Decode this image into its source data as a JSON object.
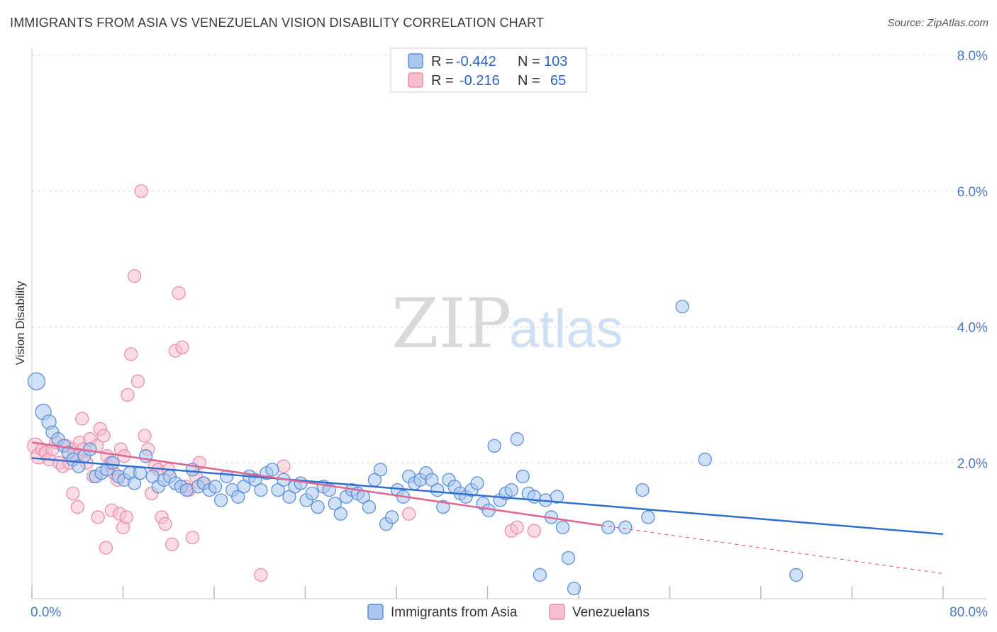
{
  "title": "IMMIGRANTS FROM ASIA VS VENEZUELAN VISION DISABILITY CORRELATION CHART",
  "source": "Source: ZipAtlas.com",
  "watermark": {
    "zip": "ZIP",
    "atlas": "atlas"
  },
  "colors": {
    "blue_fill": "#a9c6ee",
    "blue_stroke": "#5b8fd6",
    "blue_line": "#2f6fd0",
    "pink_fill": "#f6bfd0",
    "pink_stroke": "#ea8eab",
    "pink_line": "#e0668f",
    "tick_text": "#4a78c8",
    "grid": "#dddddd"
  },
  "legend": {
    "rows": [
      {
        "r_label": "R =",
        "r_value": "-0.442",
        "n_label": "N =",
        "n_value": "103",
        "color": "blue"
      },
      {
        "r_label": "R =",
        "r_value": "-0.216",
        "n_label": "N =",
        "n_value": "65",
        "color": "pink"
      }
    ]
  },
  "bottom_legend": [
    {
      "label": "Immigrants from Asia",
      "color": "blue"
    },
    {
      "label": "Venezuelans",
      "color": "pink"
    }
  ],
  "chart_data": {
    "type": "scatter",
    "ylabel": "Vision Disability",
    "xlim": [
      0,
      80
    ],
    "ylim": [
      0,
      8
    ],
    "x_tick_labels": [
      {
        "value": 0,
        "label": "0.0%"
      },
      {
        "value": 80,
        "label": "80.0%"
      }
    ],
    "y_tick_labels": [
      {
        "value": 2,
        "label": "2.0%"
      },
      {
        "value": 4,
        "label": "4.0%"
      },
      {
        "value": 6,
        "label": "6.0%"
      },
      {
        "value": 8,
        "label": "8.0%"
      }
    ],
    "grid": true,
    "legend_position": "top-center",
    "series": [
      {
        "name": "Immigrants from Asia",
        "color": "blue",
        "trend": {
          "x0": 0,
          "y0": 2.07,
          "x1": 80,
          "y1": 0.95
        },
        "points": [
          [
            0.4,
            3.2
          ],
          [
            1.0,
            2.75
          ],
          [
            1.5,
            2.6
          ],
          [
            1.8,
            2.45
          ],
          [
            2.3,
            2.35
          ],
          [
            2.8,
            2.25
          ],
          [
            3.2,
            2.15
          ],
          [
            3.6,
            2.05
          ],
          [
            4.1,
            1.95
          ],
          [
            4.6,
            2.1
          ],
          [
            5.1,
            2.2
          ],
          [
            5.6,
            1.8
          ],
          [
            6.1,
            1.85
          ],
          [
            6.6,
            1.9
          ],
          [
            7.1,
            2.0
          ],
          [
            7.6,
            1.8
          ],
          [
            8.1,
            1.75
          ],
          [
            8.6,
            1.85
          ],
          [
            9.0,
            1.7
          ],
          [
            9.5,
            1.85
          ],
          [
            10.0,
            2.1
          ],
          [
            10.6,
            1.8
          ],
          [
            11.1,
            1.65
          ],
          [
            11.6,
            1.75
          ],
          [
            12.1,
            1.8
          ],
          [
            12.6,
            1.7
          ],
          [
            13.1,
            1.65
          ],
          [
            13.6,
            1.6
          ],
          [
            14.1,
            1.9
          ],
          [
            14.6,
            1.65
          ],
          [
            15.1,
            1.7
          ],
          [
            15.6,
            1.6
          ],
          [
            16.1,
            1.65
          ],
          [
            16.6,
            1.45
          ],
          [
            17.1,
            1.8
          ],
          [
            17.6,
            1.6
          ],
          [
            18.1,
            1.5
          ],
          [
            18.6,
            1.65
          ],
          [
            19.1,
            1.8
          ],
          [
            19.6,
            1.75
          ],
          [
            20.1,
            1.6
          ],
          [
            20.6,
            1.85
          ],
          [
            21.1,
            1.9
          ],
          [
            21.6,
            1.6
          ],
          [
            22.1,
            1.75
          ],
          [
            22.6,
            1.5
          ],
          [
            23.1,
            1.65
          ],
          [
            23.6,
            1.7
          ],
          [
            24.1,
            1.45
          ],
          [
            24.6,
            1.55
          ],
          [
            25.1,
            1.35
          ],
          [
            25.6,
            1.65
          ],
          [
            26.1,
            1.6
          ],
          [
            26.6,
            1.4
          ],
          [
            27.1,
            1.25
          ],
          [
            27.6,
            1.5
          ],
          [
            28.1,
            1.6
          ],
          [
            28.6,
            1.55
          ],
          [
            29.1,
            1.5
          ],
          [
            29.6,
            1.35
          ],
          [
            30.1,
            1.75
          ],
          [
            30.6,
            1.9
          ],
          [
            31.1,
            1.1
          ],
          [
            31.6,
            1.2
          ],
          [
            32.1,
            1.6
          ],
          [
            32.6,
            1.5
          ],
          [
            33.1,
            1.8
          ],
          [
            33.6,
            1.7
          ],
          [
            34.1,
            1.75
          ],
          [
            34.6,
            1.85
          ],
          [
            35.1,
            1.75
          ],
          [
            35.6,
            1.6
          ],
          [
            36.1,
            1.35
          ],
          [
            36.6,
            1.75
          ],
          [
            37.1,
            1.65
          ],
          [
            37.6,
            1.55
          ],
          [
            38.1,
            1.5
          ],
          [
            38.6,
            1.6
          ],
          [
            39.1,
            1.7
          ],
          [
            39.6,
            1.4
          ],
          [
            40.1,
            1.3
          ],
          [
            40.6,
            2.25
          ],
          [
            41.1,
            1.45
          ],
          [
            41.6,
            1.55
          ],
          [
            42.1,
            1.6
          ],
          [
            42.6,
            2.35
          ],
          [
            43.1,
            1.8
          ],
          [
            43.6,
            1.55
          ],
          [
            44.1,
            1.5
          ],
          [
            44.6,
            0.35
          ],
          [
            45.1,
            1.45
          ],
          [
            45.6,
            1.2
          ],
          [
            46.1,
            1.5
          ],
          [
            46.6,
            1.05
          ],
          [
            47.1,
            0.6
          ],
          [
            47.6,
            0.15
          ],
          [
            50.6,
            1.05
          ],
          [
            52.1,
            1.05
          ],
          [
            53.6,
            1.6
          ],
          [
            54.1,
            1.2
          ],
          [
            57.1,
            4.3
          ],
          [
            59.1,
            2.05
          ],
          [
            67.1,
            0.35
          ]
        ]
      },
      {
        "name": "Venezuelans",
        "color": "pink",
        "trend": {
          "x0": 0,
          "y0": 2.3,
          "x1": 50,
          "y1": 1.08
        },
        "trend_ext": {
          "x0": 50,
          "y0": 1.08,
          "x1": 80,
          "y1": 0.37
        },
        "points": [
          [
            0.3,
            2.25
          ],
          [
            0.6,
            2.1
          ],
          [
            0.9,
            2.2
          ],
          [
            1.2,
            2.15
          ],
          [
            1.5,
            2.05
          ],
          [
            1.8,
            2.2
          ],
          [
            2.1,
            2.3
          ],
          [
            2.4,
            2.0
          ],
          [
            2.7,
            1.95
          ],
          [
            3.0,
            2.25
          ],
          [
            3.3,
            2.0
          ],
          [
            3.6,
            2.2
          ],
          [
            3.9,
            2.1
          ],
          [
            4.2,
            2.3
          ],
          [
            4.5,
            2.2
          ],
          [
            4.8,
            2.0
          ],
          [
            5.1,
            2.35
          ],
          [
            5.4,
            1.8
          ],
          [
            5.7,
            2.25
          ],
          [
            6.0,
            2.5
          ],
          [
            6.3,
            2.4
          ],
          [
            6.6,
            2.1
          ],
          [
            6.9,
            2.0
          ],
          [
            7.2,
            1.85
          ],
          [
            7.5,
            1.75
          ],
          [
            7.8,
            2.2
          ],
          [
            8.1,
            2.1
          ],
          [
            8.4,
            3.0
          ],
          [
            8.7,
            3.6
          ],
          [
            9.0,
            4.75
          ],
          [
            9.3,
            3.2
          ],
          [
            9.6,
            6.0
          ],
          [
            9.9,
            2.4
          ],
          [
            10.2,
            2.2
          ],
          [
            10.5,
            1.55
          ],
          [
            10.8,
            1.95
          ],
          [
            11.1,
            1.9
          ],
          [
            11.4,
            1.2
          ],
          [
            11.7,
            1.1
          ],
          [
            12.0,
            1.9
          ],
          [
            12.3,
            0.8
          ],
          [
            12.6,
            3.65
          ],
          [
            12.9,
            4.5
          ],
          [
            13.2,
            3.7
          ],
          [
            13.5,
            1.65
          ],
          [
            13.8,
            1.6
          ],
          [
            14.1,
            0.9
          ],
          [
            14.4,
            1.8
          ],
          [
            14.7,
            2.0
          ],
          [
            15.0,
            1.7
          ],
          [
            3.6,
            1.55
          ],
          [
            4.0,
            1.35
          ],
          [
            4.4,
            2.65
          ],
          [
            5.8,
            1.2
          ],
          [
            6.5,
            0.75
          ],
          [
            7.0,
            1.3
          ],
          [
            7.7,
            1.25
          ],
          [
            8.0,
            1.05
          ],
          [
            8.3,
            1.2
          ],
          [
            20.1,
            0.35
          ],
          [
            22.1,
            1.95
          ],
          [
            33.1,
            1.25
          ],
          [
            42.1,
            1.0
          ],
          [
            42.6,
            1.05
          ],
          [
            44.1,
            1.0
          ]
        ]
      }
    ]
  }
}
